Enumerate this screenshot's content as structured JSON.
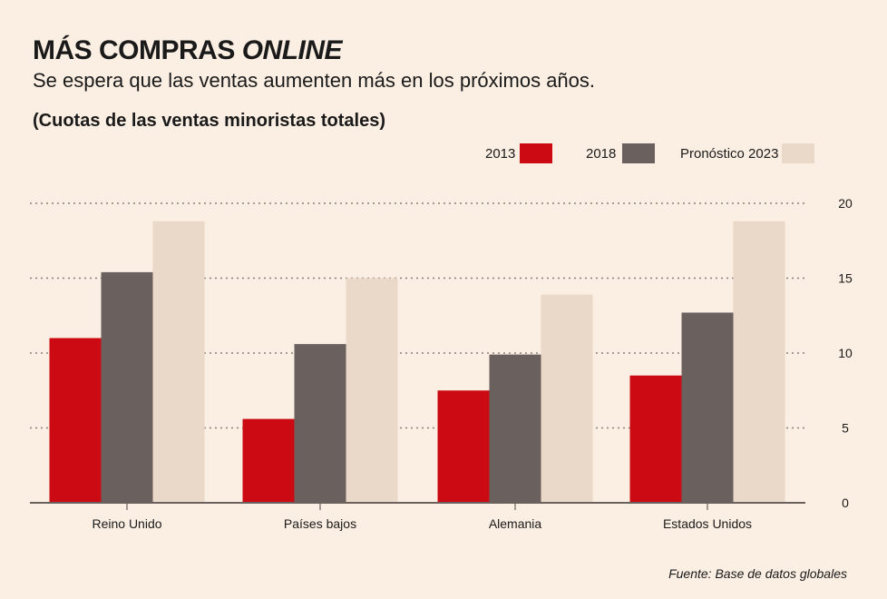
{
  "header": {
    "title_main": "MÁS COMPRAS ",
    "title_emph": "ONLINE",
    "subtitle": "Se espera que las ventas aumenten más en los próximos años.",
    "unit_label": "(Cuotas de las ventas minoristas totales)"
  },
  "legend": [
    {
      "label": "2013",
      "color": "#cc0a14"
    },
    {
      "label": "2018",
      "color": "#6a615e"
    },
    {
      "label": "Pronóstico 2023",
      "color": "#ead8c8"
    }
  ],
  "chart_data": {
    "type": "bar",
    "categories": [
      "Reino Unido",
      "Países bajos",
      "Alemania",
      "Estados Unidos"
    ],
    "series": [
      {
        "name": "2013",
        "values": [
          11.0,
          5.6,
          7.5,
          8.5
        ]
      },
      {
        "name": "2018",
        "values": [
          15.4,
          10.6,
          9.9,
          12.7
        ]
      },
      {
        "name": "Pronóstico 2023",
        "values": [
          18.8,
          15.0,
          13.9,
          18.8
        ]
      }
    ],
    "yticks": [
      0,
      5,
      10,
      15,
      20
    ],
    "ylim": [
      0,
      20
    ],
    "grid": true,
    "legend_position": "top-right",
    "y_axis_side": "right"
  },
  "source": "Fuente: Base de datos globales"
}
